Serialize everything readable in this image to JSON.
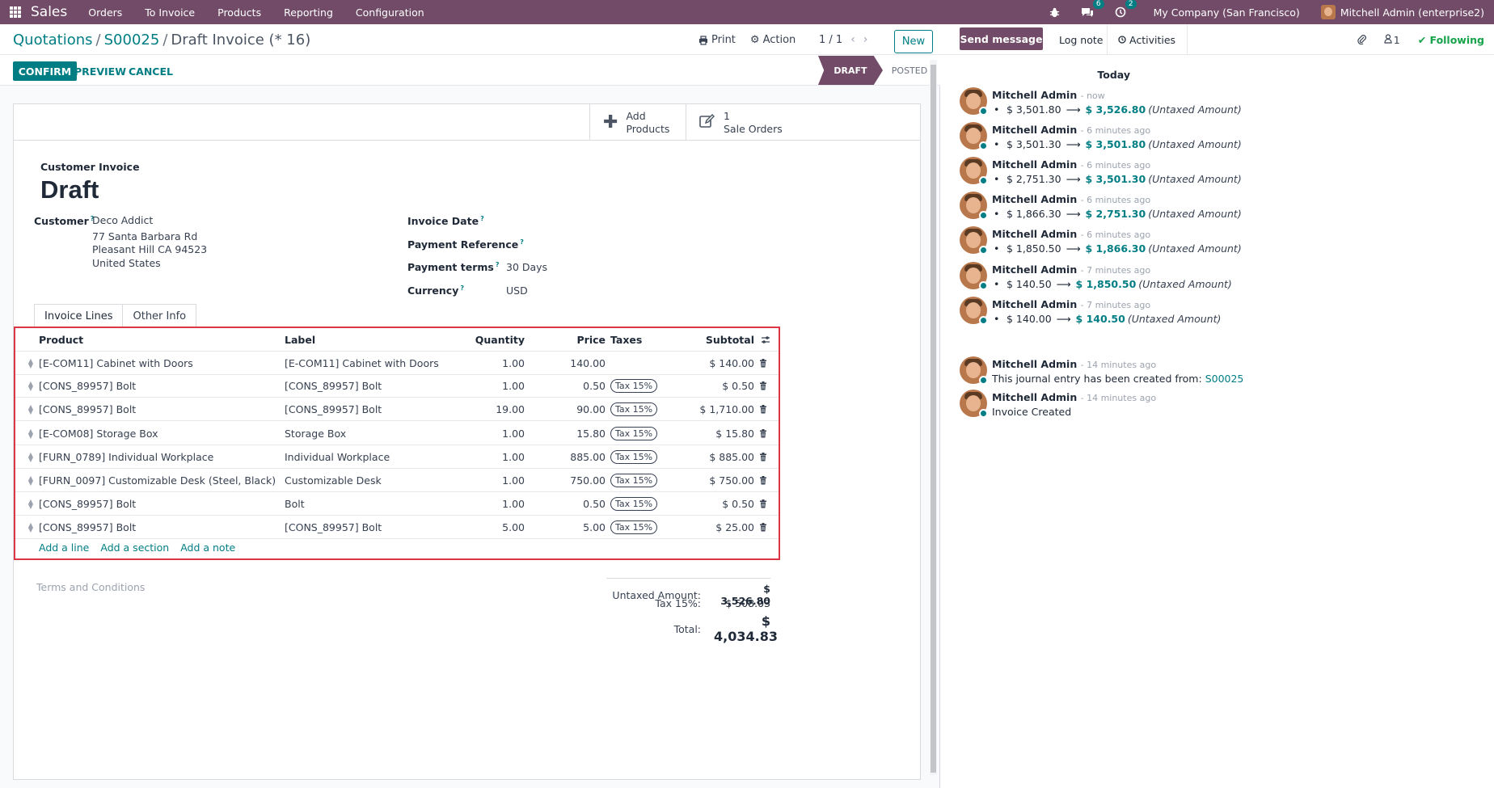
{
  "topbar": {
    "app_name": "Sales",
    "menu": [
      "Orders",
      "To Invoice",
      "Products",
      "Reporting",
      "Configuration"
    ],
    "messages_count": "6",
    "activities_count": "2",
    "company": "My Company (San Francisco)",
    "user": "Mitchell Admin (enterprise2)"
  },
  "breadcrumb": {
    "level1": "Quotations",
    "level2": "S00025",
    "current": "Draft Invoice (* 16)"
  },
  "control_panel": {
    "print_label": "Print",
    "action_label": "Action",
    "pager": "1 / 1",
    "new_label": "New"
  },
  "statusbar": {
    "confirm": "CONFIRM",
    "preview": "PREVIEW",
    "cancel": "CANCEL",
    "stages": [
      "DRAFT",
      "POSTED"
    ],
    "current_stage": "DRAFT"
  },
  "button_box": {
    "add_products_line1": "Add",
    "add_products_line2": "Products",
    "sale_orders_count": "1",
    "sale_orders_label": "Sale Orders"
  },
  "form": {
    "type_label": "Customer Invoice",
    "name": "Draft",
    "customer_label": "Customer",
    "customer_name": "Deco Addict",
    "customer_street": "77 Santa Barbara Rd",
    "customer_city": "Pleasant Hill CA 94523",
    "customer_country": "United States",
    "invoice_date_label": "Invoice Date",
    "payment_reference_label": "Payment Reference",
    "payment_terms_label": "Payment terms",
    "payment_terms_value": "30 Days",
    "currency_label": "Currency",
    "currency_value": "USD",
    "help_mark": "?"
  },
  "tabs": [
    "Invoice Lines",
    "Other Info"
  ],
  "lines": {
    "headers": {
      "product": "Product",
      "label": "Label",
      "quantity": "Quantity",
      "price": "Price",
      "taxes": "Taxes",
      "subtotal": "Subtotal"
    },
    "rows": [
      {
        "product": "[E-COM11] Cabinet with Doors",
        "label": "[E-COM11] Cabinet with Doors",
        "quantity": "1.00",
        "price": "140.00",
        "tax": "",
        "subtotal": "$ 140.00"
      },
      {
        "product": "[CONS_89957] Bolt",
        "label": "[CONS_89957] Bolt",
        "quantity": "1.00",
        "price": "0.50",
        "tax": "Tax 15%",
        "subtotal": "$ 0.50"
      },
      {
        "product": "[CONS_89957] Bolt",
        "label": "[CONS_89957] Bolt",
        "quantity": "19.00",
        "price": "90.00",
        "tax": "Tax 15%",
        "subtotal": "$ 1,710.00"
      },
      {
        "product": "[E-COM08] Storage Box",
        "label": "Storage Box",
        "quantity": "1.00",
        "price": "15.80",
        "tax": "Tax 15%",
        "subtotal": "$ 15.80"
      },
      {
        "product": "[FURN_0789] Individual Workplace",
        "label": "Individual Workplace",
        "quantity": "1.00",
        "price": "885.00",
        "tax": "Tax 15%",
        "subtotal": "$ 885.00"
      },
      {
        "product": "[FURN_0097] Customizable Desk (Steel, Black)",
        "label": "Customizable Desk",
        "quantity": "1.00",
        "price": "750.00",
        "tax": "Tax 15%",
        "subtotal": "$ 750.00"
      },
      {
        "product": "[CONS_89957] Bolt",
        "label": "Bolt",
        "quantity": "1.00",
        "price": "0.50",
        "tax": "Tax 15%",
        "subtotal": "$ 0.50"
      },
      {
        "product": "[CONS_89957] Bolt",
        "label": "[CONS_89957] Bolt",
        "quantity": "5.00",
        "price": "5.00",
        "tax": "Tax 15%",
        "subtotal": "$ 25.00"
      }
    ],
    "add_line": "Add a line",
    "add_section": "Add a section",
    "add_note": "Add a note"
  },
  "terms_placeholder": "Terms and Conditions",
  "totals": {
    "untaxed_label": "Untaxed Amount:",
    "untaxed_value": "$ 3,526.80",
    "tax_label": "Tax 15%:",
    "tax_value": "$ 508.03",
    "total_label": "Total:",
    "total_value": "$ 4,034.83"
  },
  "chatter": {
    "send_message": "Send message",
    "log_note": "Log note",
    "activities": "Activities",
    "followers_count": "1",
    "following": "Following",
    "today": "Today",
    "messages": [
      {
        "author": "Mitchell Admin",
        "date": "- now",
        "old": "$ 3,501.80",
        "new": "$ 3,526.80",
        "field": "(Untaxed Amount)"
      },
      {
        "author": "Mitchell Admin",
        "date": "- 6 minutes ago",
        "old": "$ 3,501.30",
        "new": "$ 3,501.80",
        "field": "(Untaxed Amount)"
      },
      {
        "author": "Mitchell Admin",
        "date": "- 6 minutes ago",
        "old": "$ 2,751.30",
        "new": "$ 3,501.30",
        "field": "(Untaxed Amount)"
      },
      {
        "author": "Mitchell Admin",
        "date": "- 6 minutes ago",
        "old": "$ 1,866.30",
        "new": "$ 2,751.30",
        "field": "(Untaxed Amount)"
      },
      {
        "author": "Mitchell Admin",
        "date": "- 6 minutes ago",
        "old": "$ 1,850.50",
        "new": "$ 1,866.30",
        "field": "(Untaxed Amount)"
      },
      {
        "author": "Mitchell Admin",
        "date": "- 7 minutes ago",
        "old": "$ 140.50",
        "new": "$ 1,850.50",
        "field": "(Untaxed Amount)"
      },
      {
        "author": "Mitchell Admin",
        "date": "- 7 minutes ago",
        "old": "$ 140.00",
        "new": "$ 140.50",
        "field": "(Untaxed Amount)"
      }
    ],
    "created_msg": {
      "author": "Mitchell Admin",
      "date": "- 14 minutes ago",
      "text": "This journal entry has been created from:",
      "link": "S00025"
    },
    "invoice_msg": {
      "author": "Mitchell Admin",
      "date": "- 14 minutes ago",
      "text": "Invoice Created"
    }
  }
}
